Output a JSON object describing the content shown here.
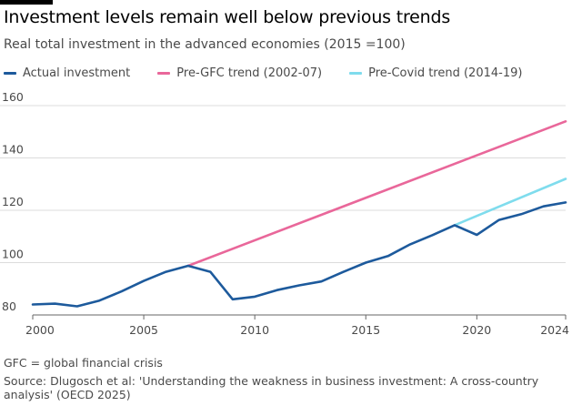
{
  "header": {
    "title": "Investment levels remain well below previous trends",
    "subtitle": "Real total investment in the advanced economies (2015 =100)"
  },
  "colors": {
    "actual": "#1d5a9c",
    "pre_gfc": "#e9679a",
    "pre_covid": "#7fdced",
    "grid": "#dcdcdc",
    "axis": "#666666"
  },
  "chart_data": {
    "type": "line",
    "title": "Investment levels remain well below previous trends",
    "subtitle": "Real total investment in the advanced economies (2015 =100)",
    "xlabel": "",
    "ylabel": "",
    "xlim": [
      2000,
      2024
    ],
    "ylim": [
      80,
      160
    ],
    "xticks": [
      2000,
      2005,
      2010,
      2015,
      2020,
      2024
    ],
    "yticks": [
      80,
      100,
      120,
      140,
      160
    ],
    "grid": true,
    "legend_position": "top-left",
    "series": [
      {
        "key": "actual",
        "name": "Actual investment",
        "x": [
          2000,
          2001,
          2002,
          2003,
          2004,
          2005,
          2006,
          2007,
          2008,
          2009,
          2010,
          2011,
          2012,
          2013,
          2014,
          2015,
          2016,
          2017,
          2018,
          2019,
          2020,
          2021,
          2022,
          2023,
          2024
        ],
        "y": [
          84,
          84.3,
          83.3,
          85.5,
          89,
          93,
          96.5,
          98.8,
          96.5,
          86,
          87,
          89.5,
          91.3,
          92.8,
          96.5,
          100,
          102.5,
          107,
          110.5,
          114.3,
          110.6,
          116.3,
          118.5,
          121.5,
          123
        ]
      },
      {
        "key": "pre_gfc",
        "name": "Pre-GFC trend (2002-07)",
        "x": [
          2007,
          2024
        ],
        "y": [
          98.8,
          154
        ]
      },
      {
        "key": "pre_covid",
        "name": "Pre-Covid trend (2014-19)",
        "x": [
          2019,
          2024
        ],
        "y": [
          114.3,
          132
        ]
      }
    ]
  },
  "footnotes": {
    "note": "GFC = global financial crisis",
    "source": "Source: Dlugosch et al: 'Understanding the weakness in business investment: A cross-country analysis' (OECD 2025)"
  }
}
